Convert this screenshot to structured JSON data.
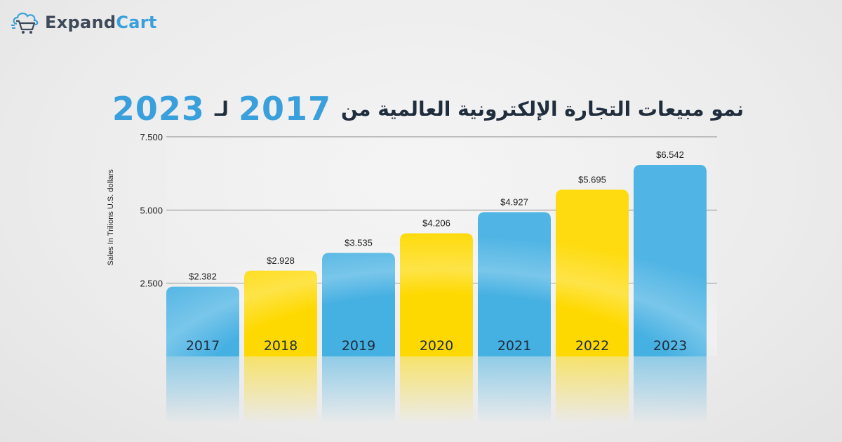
{
  "brand": {
    "part1": "Expand",
    "part2": "Cart"
  },
  "title": {
    "text": "نمو مبيعات التجارة الإلكترونية العالمية من",
    "connector": "لـ",
    "year_from": "2017",
    "year_to": "2023"
  },
  "colors": {
    "blue": "#45b0e2",
    "yellow": "#fed901",
    "text_dark": "#1f2d3d",
    "grid": "#8a8a8a"
  },
  "chart_data": {
    "type": "bar",
    "ylabel": "Sales In Trilions U.S. dollars",
    "categories": [
      "2017",
      "2018",
      "2019",
      "2020",
      "2021",
      "2022",
      "2023"
    ],
    "values": [
      2.382,
      2.928,
      3.535,
      4.206,
      4.927,
      5.695,
      6.542
    ],
    "data_labels": [
      "$2.382",
      "$2.928",
      "$3.535",
      "$4.206",
      "$4.927",
      "$5.695",
      "$6.542"
    ],
    "bar_colors": [
      "#45b0e2",
      "#fed901",
      "#45b0e2",
      "#fed901",
      "#45b0e2",
      "#fed901",
      "#45b0e2"
    ],
    "yticks": [
      {
        "value": 2.5,
        "label": "2.500"
      },
      {
        "value": 5.0,
        "label": "5.000"
      },
      {
        "value": 7.5,
        "label": "7.500"
      }
    ],
    "ylim": [
      0,
      7.5
    ],
    "grid": true,
    "legend": "none"
  }
}
